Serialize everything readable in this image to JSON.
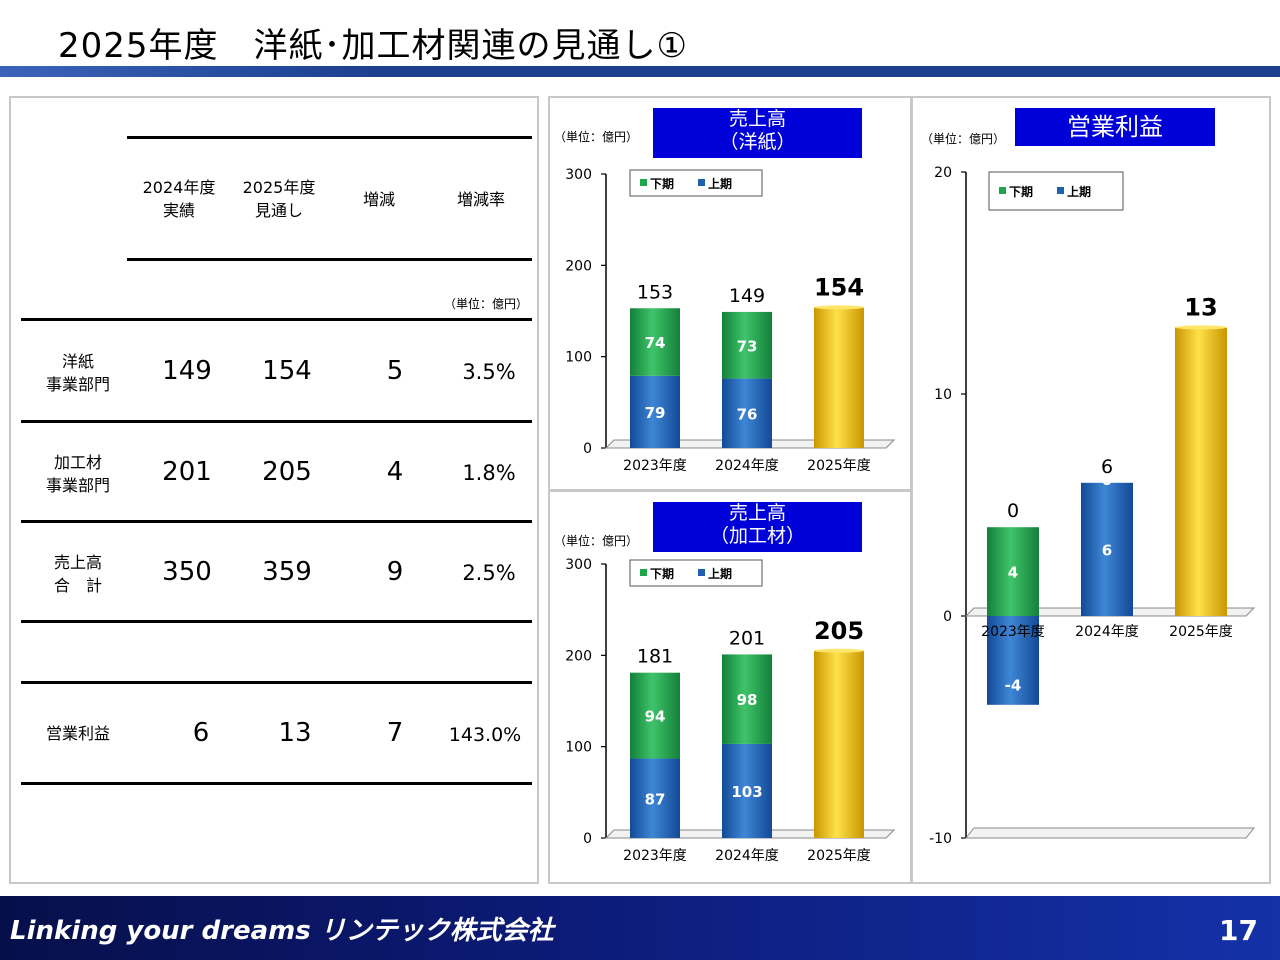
{
  "page": {
    "title": "2025年度　洋紙･加工材関連の見通し①",
    "page_number": "17"
  },
  "footer": {
    "brand": "Linking your dreams リンテック株式会社"
  },
  "table": {
    "headers": [
      "2024年度\n実績",
      "2025年度\n見通し",
      "増減",
      "増減率"
    ],
    "unit": "（単位：億円）",
    "rows": [
      {
        "label": "洋紙\n事業部門",
        "prev": "149",
        "next": "154",
        "diff": "5",
        "rate": "3.5%"
      },
      {
        "label": "加工材\n事業部門",
        "prev": "201",
        "next": "205",
        "diff": "4",
        "rate": "1.8%"
      },
      {
        "label": "売上高\n合　計",
        "prev": "350",
        "next": "359",
        "diff": "9",
        "rate": "2.5%"
      },
      {
        "label": "営業利益",
        "prev": "6",
        "next": "13",
        "diff": "7",
        "rate": "143.0%"
      }
    ]
  },
  "chart_data": [
    {
      "type": "bar",
      "title": "売上高\n（洋紙）",
      "unit": "（単位：億円）",
      "categories": [
        "2023年度",
        "2024年度",
        "2025年度"
      ],
      "legend": [
        "下期",
        "上期"
      ],
      "ylim": [
        0,
        300
      ],
      "yticks": [
        0,
        100,
        200,
        300
      ],
      "series": [
        {
          "name": "上期",
          "values": [
            79,
            76,
            null
          ]
        },
        {
          "name": "下期",
          "values": [
            74,
            73,
            null
          ]
        }
      ],
      "forecast": [
        null,
        null,
        154
      ],
      "totals": [
        "153",
        "149",
        "154"
      ],
      "colors": {
        "上期": "#1f5fb0",
        "下期": "#1fa64a",
        "forecast": "#e6b800"
      }
    },
    {
      "type": "bar",
      "title": "売上高\n（加工材）",
      "unit": "（単位：億円）",
      "categories": [
        "2023年度",
        "2024年度",
        "2025年度"
      ],
      "legend": [
        "下期",
        "上期"
      ],
      "ylim": [
        0,
        300
      ],
      "yticks": [
        0,
        100,
        200,
        300
      ],
      "series": [
        {
          "name": "上期",
          "values": [
            87,
            103,
            null
          ]
        },
        {
          "name": "下期",
          "values": [
            94,
            98,
            null
          ]
        }
      ],
      "forecast": [
        null,
        null,
        205
      ],
      "totals": [
        "181",
        "201",
        "205"
      ],
      "colors": {
        "上期": "#1f5fb0",
        "下期": "#1fa64a",
        "forecast": "#e6b800"
      }
    },
    {
      "type": "bar",
      "title": "営業利益",
      "unit": "（単位：億円）",
      "categories": [
        "2023年度",
        "2024年度",
        "2025年度"
      ],
      "legend": [
        "下期",
        "上期"
      ],
      "ylim": [
        -10,
        20
      ],
      "yticks": [
        -10,
        0,
        10,
        20
      ],
      "series": [
        {
          "name": "上期",
          "values": [
            -4,
            6,
            null
          ]
        },
        {
          "name": "下期",
          "values": [
            4,
            0,
            null
          ]
        }
      ],
      "forecast": [
        null,
        null,
        13
      ],
      "totals": [
        "0",
        "6",
        "13"
      ],
      "colors": {
        "上期": "#1f5fb0",
        "下期": "#1fa64a",
        "forecast": "#e6b800"
      }
    }
  ]
}
